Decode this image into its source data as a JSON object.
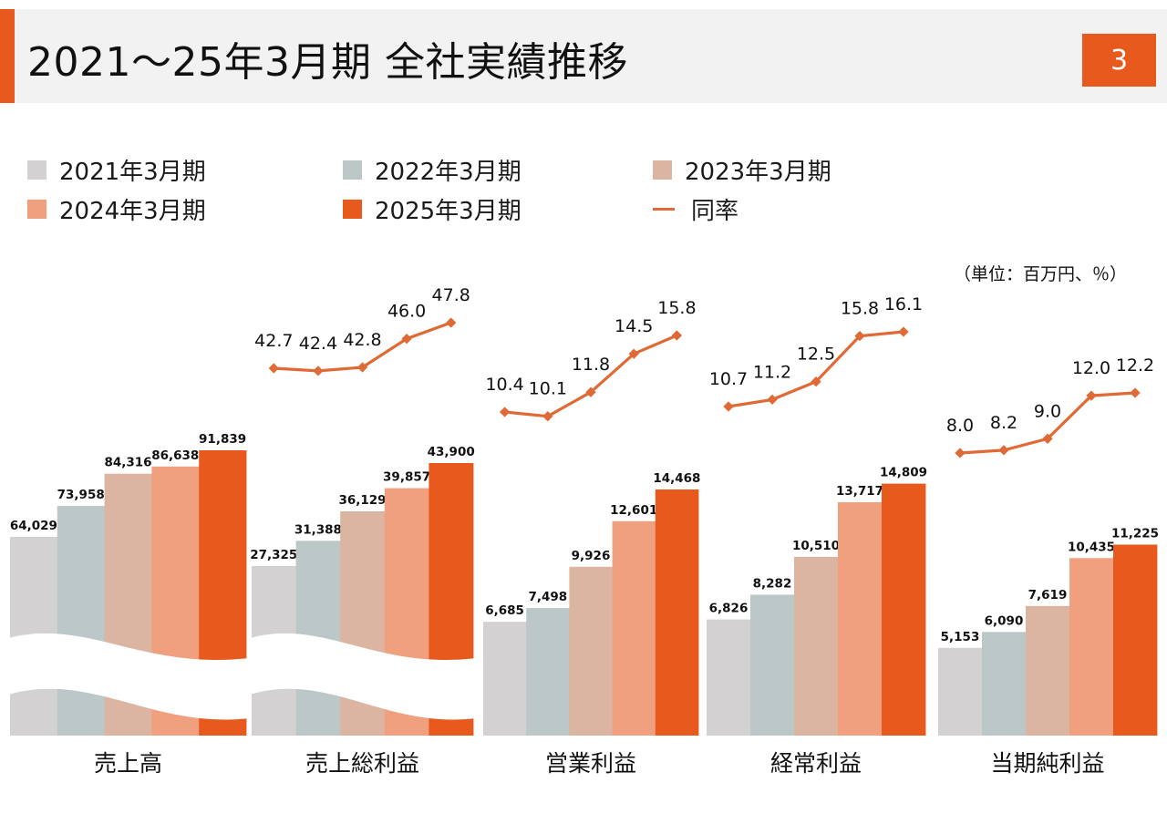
{
  "header": {
    "title": "2021～25年3月期 全社実績推移",
    "page_number": "3"
  },
  "unit_note": "（単位：百万円、％）",
  "colors": {
    "accent": "#e8591e",
    "series": [
      "#d3d1d1",
      "#bcc7c8",
      "#dbb4a2",
      "#f0a07f",
      "#e8591e"
    ],
    "rate_line": "#e06a35"
  },
  "chart_data": {
    "type": "bar",
    "categories": [
      "売上高",
      "売上総利益",
      "営業利益",
      "経常利益",
      "当期純利益"
    ],
    "series": [
      {
        "name": "2021年3月期",
        "values": [
          64029,
          27325,
          6685,
          6826,
          5153
        ]
      },
      {
        "name": "2022年3月期",
        "values": [
          73958,
          31388,
          7498,
          8282,
          6090
        ]
      },
      {
        "name": "2023年3月期",
        "values": [
          84316,
          36129,
          9926,
          10510,
          7619
        ]
      },
      {
        "name": "2024年3月期",
        "values": [
          86638,
          39857,
          12601,
          13717,
          10435
        ]
      },
      {
        "name": "2025年3月期",
        "values": [
          91839,
          43900,
          14468,
          14809,
          11225
        ]
      }
    ],
    "value_labels": [
      [
        "64,029",
        "73,958",
        "84,316",
        "86,638",
        "91,839"
      ],
      [
        "27,325",
        "31,388",
        "36,129",
        "39,857",
        "43,900"
      ],
      [
        "6,685",
        "7,498",
        "9,926",
        "12,601",
        "14,468"
      ],
      [
        "6,826",
        "8,282",
        "10,510",
        "13,717",
        "14,809"
      ],
      [
        "5,153",
        "6,090",
        "7,619",
        "10,435",
        "11,225"
      ]
    ],
    "line_series": {
      "name": "同率",
      "values": [
        null,
        [
          42.7,
          42.4,
          42.8,
          46.0,
          47.8
        ],
        [
          10.4,
          10.1,
          11.8,
          14.5,
          15.8
        ],
        [
          10.7,
          11.2,
          12.5,
          15.8,
          16.1
        ],
        [
          8.0,
          8.2,
          9.0,
          12.0,
          12.2
        ]
      ],
      "labels": [
        null,
        [
          "42.7",
          "42.4",
          "42.8",
          "46.0",
          "47.8"
        ],
        [
          "10.4",
          "10.1",
          "11.8",
          "14.5",
          "15.8"
        ],
        [
          "10.7",
          "11.2",
          "12.5",
          "15.8",
          "16.1"
        ],
        [
          "8.0",
          "8.2",
          "9.0",
          "12.0",
          "12.2"
        ]
      ]
    },
    "axis_break": [
      "売上高",
      "売上総利益"
    ],
    "legend_position": "top"
  }
}
